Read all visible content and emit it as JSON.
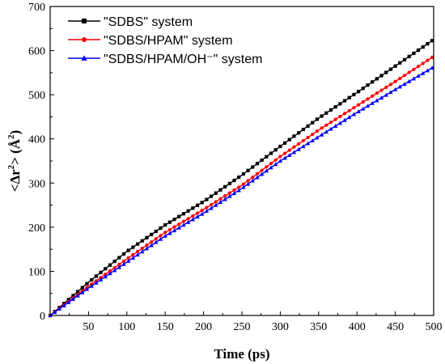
{
  "chart_data": {
    "type": "line",
    "title": "",
    "xlabel": "Time (ps)",
    "ylabel_parts": {
      "open": "<Δr",
      "sup1": "2",
      "mid": "> (Å",
      "sup2": "2",
      "close": ")"
    },
    "xlim": [
      0,
      500
    ],
    "ylim": [
      0,
      700
    ],
    "x_ticks": [
      50,
      100,
      150,
      200,
      250,
      300,
      350,
      400,
      450,
      500
    ],
    "y_ticks": [
      0,
      100,
      200,
      300,
      400,
      500,
      600,
      700
    ],
    "grid": false,
    "legend_position": "top-left",
    "series": [
      {
        "name": "\"SDBS\" system",
        "color": "#000000",
        "marker": "square",
        "x": [
          0,
          50,
          100,
          150,
          200,
          250,
          300,
          350,
          400,
          450,
          500
        ],
        "y": [
          0,
          75,
          145,
          205,
          258,
          318,
          383,
          447,
          505,
          565,
          625
        ]
      },
      {
        "name": "\"SDBS/HPAM\" system",
        "color": "#ff0000",
        "marker": "circle",
        "x": [
          0,
          50,
          100,
          150,
          200,
          250,
          300,
          350,
          400,
          450,
          500
        ],
        "y": [
          0,
          66,
          128,
          188,
          240,
          295,
          360,
          420,
          475,
          530,
          587
        ]
      },
      {
        "name": "\"SDBS/HPAM/OH⁻\" system",
        "color": "#0000ff",
        "marker": "triangle",
        "x": [
          0,
          50,
          100,
          150,
          200,
          250,
          300,
          350,
          400,
          450,
          500
        ],
        "y": [
          0,
          62,
          121,
          180,
          232,
          288,
          350,
          405,
          460,
          512,
          563
        ]
      }
    ]
  }
}
